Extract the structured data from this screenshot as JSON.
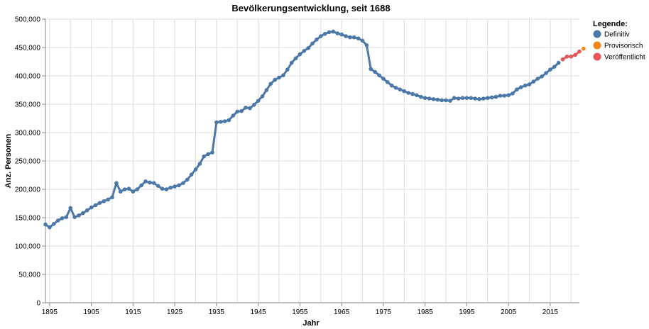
{
  "chart_data": {
    "type": "line",
    "title": "Bevölkerungsentwicklung, seit 1688",
    "xlabel": "Jahr",
    "ylabel": "Anz. Personen",
    "xlim": [
      1894,
      2022
    ],
    "ylim": [
      0,
      500000
    ],
    "x_ticks": [
      "1895",
      "1905",
      "1915",
      "1925",
      "1935",
      "1945",
      "1955",
      "1965",
      "1975",
      "1985",
      "1995",
      "2005",
      "2015"
    ],
    "y_ticks": [
      "0",
      "50,000",
      "100,000",
      "150,000",
      "200,000",
      "250,000",
      "300,000",
      "350,000",
      "400,000",
      "450,000",
      "500,000"
    ],
    "grid": true,
    "legend": {
      "title": "Legende:",
      "placement": "right",
      "entries": [
        {
          "name": "Definitiv",
          "color": "#4c78a8"
        },
        {
          "name": "Provisorisch",
          "color": "#f58518"
        },
        {
          "name": "Veröffentlicht",
          "color": "#e45756"
        }
      ]
    },
    "series": [
      {
        "name": "Definitiv",
        "color": "#4c78a8",
        "points": [
          [
            1894,
            138000
          ],
          [
            1895,
            133000
          ],
          [
            1896,
            139000
          ],
          [
            1897,
            145000
          ],
          [
            1898,
            149000
          ],
          [
            1899,
            151000
          ],
          [
            1900,
            167000
          ],
          [
            1901,
            151000
          ],
          [
            1902,
            154000
          ],
          [
            1903,
            158000
          ],
          [
            1904,
            163000
          ],
          [
            1905,
            168000
          ],
          [
            1906,
            172000
          ],
          [
            1907,
            176000
          ],
          [
            1908,
            179000
          ],
          [
            1909,
            182000
          ],
          [
            1910,
            186000
          ],
          [
            1911,
            211000
          ],
          [
            1912,
            196000
          ],
          [
            1913,
            200000
          ],
          [
            1914,
            201000
          ],
          [
            1915,
            196000
          ],
          [
            1916,
            200000
          ],
          [
            1917,
            207000
          ],
          [
            1918,
            214000
          ],
          [
            1919,
            212000
          ],
          [
            1920,
            211000
          ],
          [
            1921,
            206000
          ],
          [
            1922,
            201000
          ],
          [
            1923,
            200000
          ],
          [
            1924,
            203000
          ],
          [
            1925,
            205000
          ],
          [
            1926,
            207000
          ],
          [
            1927,
            211000
          ],
          [
            1928,
            217000
          ],
          [
            1929,
            226000
          ],
          [
            1930,
            235000
          ],
          [
            1931,
            245000
          ],
          [
            1932,
            258000
          ],
          [
            1933,
            262000
          ],
          [
            1934,
            265000
          ],
          [
            1935,
            318000
          ],
          [
            1936,
            319000
          ],
          [
            1937,
            320000
          ],
          [
            1938,
            322000
          ],
          [
            1939,
            330000
          ],
          [
            1940,
            337000
          ],
          [
            1941,
            338000
          ],
          [
            1942,
            344000
          ],
          [
            1943,
            343000
          ],
          [
            1944,
            349000
          ],
          [
            1945,
            356000
          ],
          [
            1946,
            364000
          ],
          [
            1947,
            375000
          ],
          [
            1948,
            386000
          ],
          [
            1949,
            393000
          ],
          [
            1950,
            397000
          ],
          [
            1951,
            401000
          ],
          [
            1952,
            411000
          ],
          [
            1953,
            423000
          ],
          [
            1954,
            431000
          ],
          [
            1955,
            438000
          ],
          [
            1956,
            444000
          ],
          [
            1957,
            449000
          ],
          [
            1958,
            457000
          ],
          [
            1959,
            464000
          ],
          [
            1960,
            470000
          ],
          [
            1961,
            474000
          ],
          [
            1962,
            477000
          ],
          [
            1963,
            478000
          ],
          [
            1964,
            475000
          ],
          [
            1965,
            473000
          ],
          [
            1966,
            470000
          ],
          [
            1967,
            468000
          ],
          [
            1968,
            468000
          ],
          [
            1969,
            466000
          ],
          [
            1970,
            462000
          ],
          [
            1971,
            454000
          ],
          [
            1972,
            412000
          ],
          [
            1973,
            407000
          ],
          [
            1974,
            401000
          ],
          [
            1975,
            395000
          ],
          [
            1976,
            389000
          ],
          [
            1977,
            383000
          ],
          [
            1978,
            379000
          ],
          [
            1979,
            376000
          ],
          [
            1980,
            373000
          ],
          [
            1981,
            370000
          ],
          [
            1982,
            368000
          ],
          [
            1983,
            366000
          ],
          [
            1984,
            363000
          ],
          [
            1985,
            361000
          ],
          [
            1986,
            360000
          ],
          [
            1987,
            359000
          ],
          [
            1988,
            358000
          ],
          [
            1989,
            357000
          ],
          [
            1990,
            357000
          ],
          [
            1991,
            356000
          ],
          [
            1992,
            361000
          ],
          [
            1993,
            360000
          ],
          [
            1994,
            361000
          ],
          [
            1995,
            361000
          ],
          [
            1996,
            361000
          ],
          [
            1997,
            360000
          ],
          [
            1998,
            359000
          ],
          [
            1999,
            360000
          ],
          [
            2000,
            361000
          ],
          [
            2001,
            362000
          ],
          [
            2002,
            363000
          ],
          [
            2003,
            365000
          ],
          [
            2004,
            365000
          ],
          [
            2005,
            366000
          ],
          [
            2006,
            369000
          ],
          [
            2007,
            376000
          ],
          [
            2008,
            380000
          ],
          [
            2009,
            383000
          ],
          [
            2010,
            385000
          ],
          [
            2011,
            390000
          ],
          [
            2012,
            395000
          ],
          [
            2013,
            399000
          ],
          [
            2014,
            405000
          ],
          [
            2015,
            411000
          ],
          [
            2016,
            416000
          ],
          [
            2017,
            423000
          ]
        ]
      },
      {
        "name": "Veröffentlicht",
        "color": "#e45756",
        "points": [
          [
            2018,
            429000
          ],
          [
            2019,
            434000
          ],
          [
            2020,
            434000
          ],
          [
            2021,
            437000
          ],
          [
            2022,
            443000
          ]
        ]
      },
      {
        "name": "Provisorisch",
        "color": "#f58518",
        "points": [
          [
            2023,
            448000
          ]
        ]
      }
    ]
  }
}
